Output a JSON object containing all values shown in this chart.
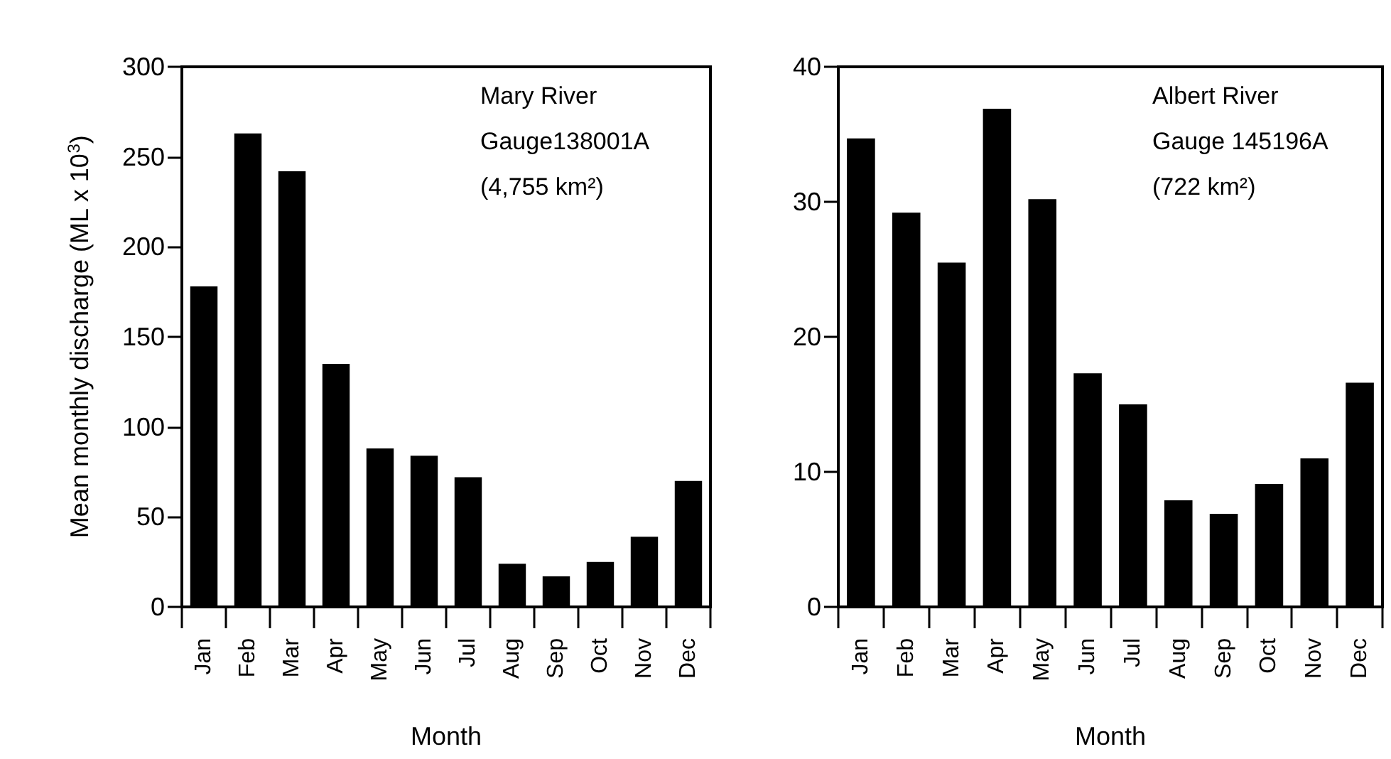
{
  "chart_data": [
    {
      "type": "bar",
      "ylabel": "Mean monthly discharge (ML x 10$^{3}$)",
      "xlabel": "Month",
      "categories": [
        "Jan",
        "Feb",
        "Mar",
        "Apr",
        "May",
        "Jun",
        "Jul",
        "Aug",
        "Sep",
        "Oct",
        "Nov",
        "Dec"
      ],
      "values": [
        178,
        263,
        242,
        135,
        88,
        84,
        72,
        24,
        17,
        25,
        39,
        70
      ],
      "color": "#000000",
      "ylim": [
        0,
        300
      ],
      "yticks": [
        0,
        50,
        100,
        150,
        200,
        250,
        300
      ],
      "annotations": [
        "Mary River",
        "Gauge138001A",
        "(4,755 km²)"
      ]
    },
    {
      "type": "bar",
      "xlabel": "Month",
      "categories": [
        "Jan",
        "Feb",
        "Mar",
        "Apr",
        "May",
        "Jun",
        "Jul",
        "Aug",
        "Sep",
        "Oct",
        "Nov",
        "Dec"
      ],
      "values": [
        34.7,
        29.2,
        25.5,
        36.9,
        30.2,
        17.3,
        15.0,
        7.9,
        6.9,
        9.1,
        11.0,
        16.6
      ],
      "color": "#000000",
      "ylim": [
        0,
        40
      ],
      "yticks": [
        0,
        10,
        20,
        30,
        40
      ],
      "annotations": [
        "Albert River",
        "Gauge 145196A",
        "(722 km²)"
      ]
    }
  ]
}
